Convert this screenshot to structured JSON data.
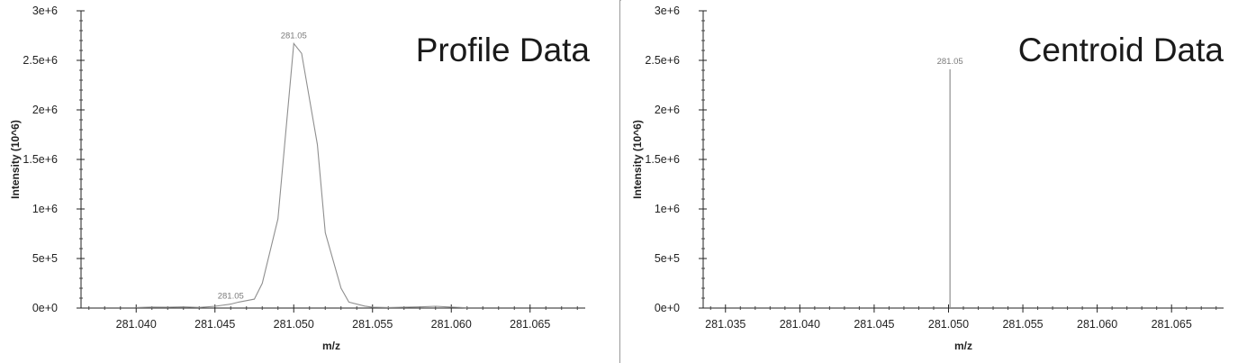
{
  "chart_data": [
    {
      "type": "line",
      "title": "Profile Data",
      "xlabel": "m/z",
      "ylabel": "Intensity (10^6)",
      "xlim": [
        281.0365,
        281.0685
      ],
      "ylim": [
        0,
        3000000
      ],
      "xticks": [
        {
          "value": 281.04,
          "label": "281.040"
        },
        {
          "value": 281.045,
          "label": "281.045"
        },
        {
          "value": 281.05,
          "label": "281.050"
        },
        {
          "value": 281.055,
          "label": "281.055"
        },
        {
          "value": 281.06,
          "label": "281.060"
        },
        {
          "value": 281.065,
          "label": "281.065"
        }
      ],
      "yticks": [
        {
          "value": 0,
          "label": "0e+0"
        },
        {
          "value": 500000,
          "label": "5e+5"
        },
        {
          "value": 1000000,
          "label": "1e+6"
        },
        {
          "value": 1500000,
          "label": "1.5e+6"
        },
        {
          "value": 2000000,
          "label": "2e+6"
        },
        {
          "value": 2500000,
          "label": "2.5e+6"
        },
        {
          "value": 3000000,
          "label": "3e+6"
        }
      ],
      "series": [
        {
          "x": [
            281.04,
            281.041,
            281.042,
            281.043,
            281.044,
            281.045,
            281.046,
            281.0465,
            281.0475,
            281.048,
            281.049,
            281.05,
            281.0505,
            281.0515,
            281.052,
            281.053,
            281.0535,
            281.0545,
            281.055,
            281.056,
            281.057,
            281.058,
            281.059,
            281.06,
            281.061
          ],
          "y": [
            5000,
            10000,
            8000,
            12000,
            6000,
            18000,
            40000,
            60000,
            90000,
            250000,
            900000,
            2670000,
            2570000,
            1650000,
            760000,
            200000,
            60000,
            20000,
            8000,
            5000,
            8000,
            12000,
            18000,
            10000,
            3000
          ]
        }
      ],
      "annotations": [
        {
          "text": "281.05",
          "x": 281.05,
          "y": 2670000
        },
        {
          "text": "281.05",
          "x": 281.046,
          "y": 40000
        }
      ],
      "line_color": "#8f8f8f",
      "grid": false
    },
    {
      "type": "bar",
      "title": "Centroid Data",
      "xlabel": "m/z",
      "ylabel": "Intensity (10^6)",
      "xlim": [
        281.0335,
        281.0685
      ],
      "ylim": [
        0,
        3000000
      ],
      "xticks": [
        {
          "value": 281.035,
          "label": "281.035"
        },
        {
          "value": 281.04,
          "label": "281.040"
        },
        {
          "value": 281.045,
          "label": "281.045"
        },
        {
          "value": 281.05,
          "label": "281.050"
        },
        {
          "value": 281.055,
          "label": "281.055"
        },
        {
          "value": 281.06,
          "label": "281.060"
        },
        {
          "value": 281.065,
          "label": "281.065"
        }
      ],
      "yticks": [
        {
          "value": 0,
          "label": "0e+0"
        },
        {
          "value": 500000,
          "label": "5e+5"
        },
        {
          "value": 1000000,
          "label": "1e+6"
        },
        {
          "value": 1500000,
          "label": "1.5e+6"
        },
        {
          "value": 2000000,
          "label": "2e+6"
        },
        {
          "value": 2500000,
          "label": "2.5e+6"
        },
        {
          "value": 3000000,
          "label": "3e+6"
        }
      ],
      "series": [
        {
          "x": [
            281.0501
          ],
          "y": [
            2410000
          ]
        }
      ],
      "annotations": [
        {
          "text": "281.05",
          "x": 281.0501,
          "y": 2410000
        }
      ],
      "line_color": "#8f8f8f",
      "grid": false
    }
  ]
}
